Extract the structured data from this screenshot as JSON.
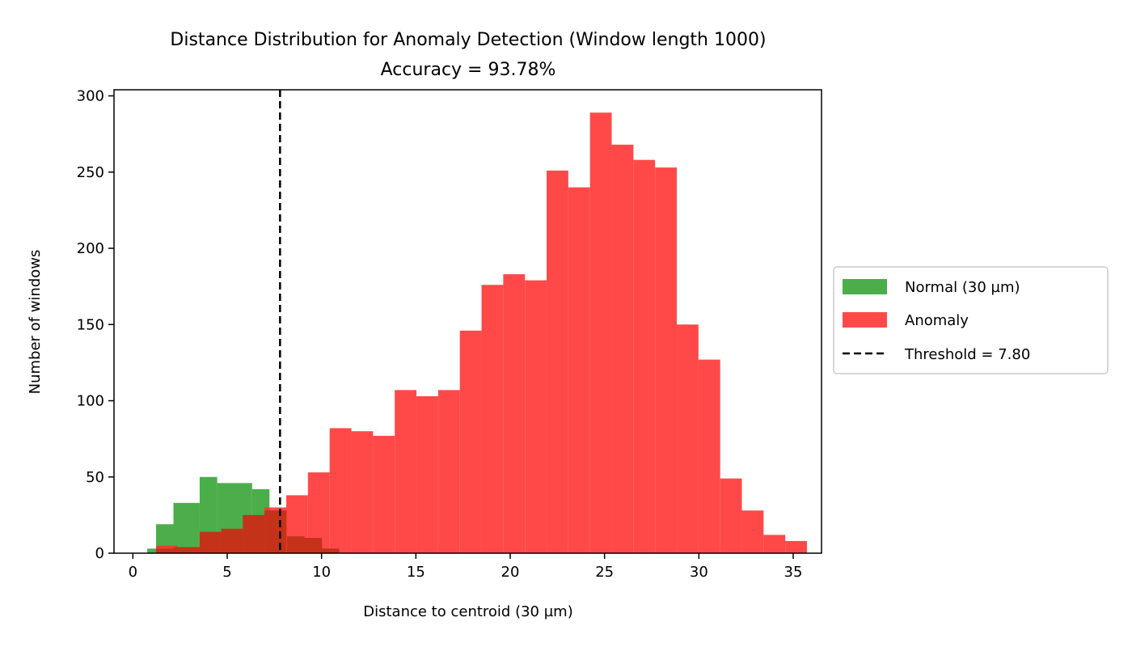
{
  "chart_data": {
    "type": "histogram",
    "title": "Distance Distribution for Anomaly Detection (Window length 1000)",
    "subtitle": "Accuracy = 93.78%",
    "xlabel": "Distance to centroid (30 µm)",
    "ylabel": "Number of windows",
    "xlim": [
      -1,
      36.5
    ],
    "ylim": [
      0,
      304
    ],
    "xticks": [
      0,
      5,
      10,
      15,
      20,
      25,
      30,
      35
    ],
    "yticks": [
      0,
      50,
      100,
      150,
      200,
      250,
      300
    ],
    "grid": false,
    "legend_position": "outside-right",
    "threshold": {
      "label": "Threshold = 7.80",
      "value": 7.8,
      "color": "#000000",
      "style": "dashed"
    },
    "series": [
      {
        "name": "Normal (30 µm)",
        "color": "#2ca02c",
        "opacity": 0.85,
        "bins": [
          [
            0.76,
            1.23,
            3
          ],
          [
            1.23,
            2.15,
            19
          ],
          [
            2.15,
            3.54,
            33
          ],
          [
            3.54,
            4.47,
            50
          ],
          [
            4.47,
            6.32,
            46
          ],
          [
            6.32,
            7.24,
            42
          ],
          [
            7.24,
            8.17,
            28
          ],
          [
            8.17,
            9.09,
            11
          ],
          [
            9.09,
            10.02,
            10
          ],
          [
            10.02,
            10.94,
            3
          ]
        ]
      },
      {
        "name": "Anomaly",
        "color": "#ff3030",
        "opacity": 0.88,
        "bins": [
          [
            1.23,
            2.38,
            5
          ],
          [
            2.38,
            3.54,
            4
          ],
          [
            3.54,
            4.69,
            14
          ],
          [
            4.69,
            5.83,
            16
          ],
          [
            5.83,
            6.98,
            25
          ],
          [
            6.98,
            8.13,
            30
          ],
          [
            8.13,
            9.28,
            38
          ],
          [
            9.28,
            10.43,
            53
          ],
          [
            10.43,
            11.58,
            82
          ],
          [
            11.58,
            12.73,
            80
          ],
          [
            12.73,
            13.88,
            77
          ],
          [
            13.88,
            15.03,
            107
          ],
          [
            15.03,
            16.18,
            103
          ],
          [
            16.18,
            17.33,
            107
          ],
          [
            17.33,
            18.48,
            146
          ],
          [
            18.48,
            19.63,
            176
          ],
          [
            19.63,
            20.78,
            183
          ],
          [
            20.78,
            21.93,
            179
          ],
          [
            21.93,
            23.08,
            251
          ],
          [
            23.08,
            24.23,
            240
          ],
          [
            24.23,
            25.38,
            289
          ],
          [
            25.38,
            26.53,
            268
          ],
          [
            26.53,
            27.68,
            258
          ],
          [
            27.68,
            28.83,
            253
          ],
          [
            28.83,
            29.98,
            150
          ],
          [
            29.98,
            31.13,
            127
          ],
          [
            31.13,
            32.28,
            49
          ],
          [
            32.28,
            33.43,
            28
          ],
          [
            33.43,
            34.58,
            12
          ],
          [
            34.58,
            35.73,
            8
          ]
        ]
      }
    ],
    "overlap": {
      "color": "#c43219",
      "bins": [
        [
          1.23,
          2.15,
          3
        ],
        [
          2.15,
          3.54,
          4
        ],
        [
          3.54,
          4.69,
          14
        ],
        [
          4.69,
          5.83,
          16
        ],
        [
          5.83,
          6.98,
          25
        ],
        [
          6.98,
          8.13,
          28
        ],
        [
          8.17,
          9.09,
          11
        ],
        [
          9.09,
          10.02,
          10
        ],
        [
          10.02,
          10.94,
          3
        ]
      ]
    }
  }
}
